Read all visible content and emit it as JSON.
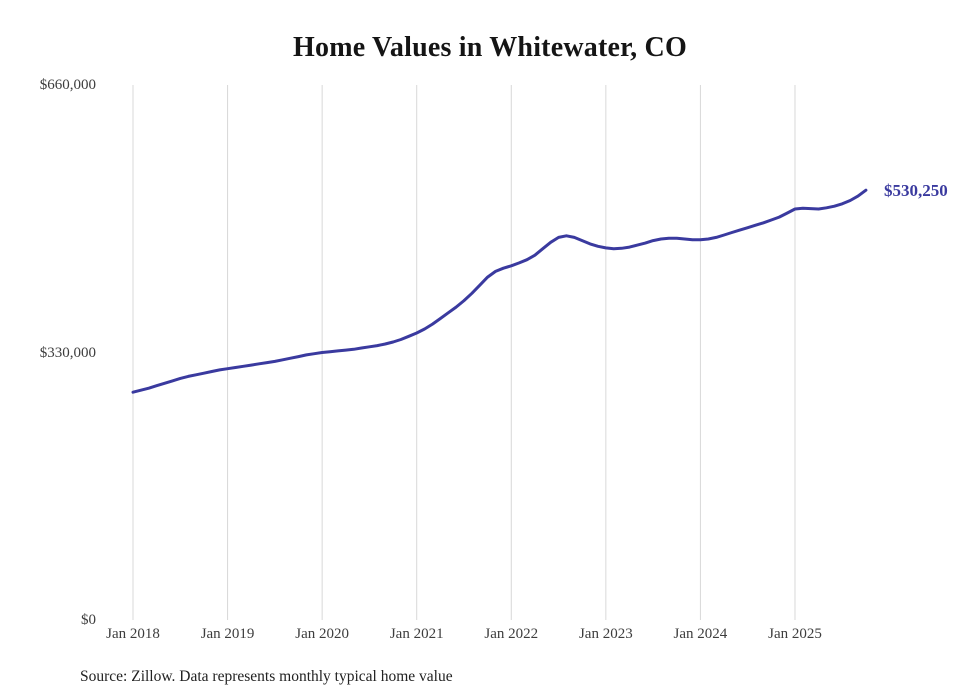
{
  "page": {
    "end_label": "$530,250",
    "source_note": "Source: Zillow. Data represents monthly typical home value",
    "line_color": "#3a3a9f",
    "end_label_color": "#3a3a9f",
    "gridline_color": "#d8d8d8"
  },
  "chart_data": {
    "type": "line",
    "title": "Home Values in Whitewater, CO",
    "xlabel": "",
    "ylabel": "",
    "ylim": [
      0,
      660000
    ],
    "grid": "vertical-only",
    "legend": "none",
    "annotation": "$530,250",
    "yticks": [
      {
        "value": 0,
        "label": "$0"
      },
      {
        "value": 330000,
        "label": "$330,000"
      },
      {
        "value": 660000,
        "label": "$660,000"
      }
    ],
    "xticks": [
      "Jan 2018",
      "Jan 2019",
      "Jan 2020",
      "Jan 2021",
      "Jan 2022",
      "Jan 2023",
      "Jan 2024",
      "Jan 2025"
    ],
    "x": [
      "Jan 2018",
      "Feb 2018",
      "Mar 2018",
      "Apr 2018",
      "May 2018",
      "Jun 2018",
      "Jul 2018",
      "Aug 2018",
      "Sep 2018",
      "Oct 2018",
      "Nov 2018",
      "Dec 2018",
      "Jan 2019",
      "Feb 2019",
      "Mar 2019",
      "Apr 2019",
      "May 2019",
      "Jun 2019",
      "Jul 2019",
      "Aug 2019",
      "Sep 2019",
      "Oct 2019",
      "Nov 2019",
      "Dec 2019",
      "Jan 2020",
      "Feb 2020",
      "Mar 2020",
      "Apr 2020",
      "May 2020",
      "Jun 2020",
      "Jul 2020",
      "Aug 2020",
      "Sep 2020",
      "Oct 2020",
      "Nov 2020",
      "Dec 2020",
      "Jan 2021",
      "Feb 2021",
      "Mar 2021",
      "Apr 2021",
      "May 2021",
      "Jun 2021",
      "Jul 2021",
      "Aug 2021",
      "Sep 2021",
      "Oct 2021",
      "Nov 2021",
      "Dec 2021",
      "Jan 2022",
      "Feb 2022",
      "Mar 2022",
      "Apr 2022",
      "May 2022",
      "Jun 2022",
      "Jul 2022",
      "Aug 2022",
      "Sep 2022",
      "Oct 2022",
      "Nov 2022",
      "Dec 2022",
      "Jan 2023",
      "Feb 2023",
      "Mar 2023",
      "Apr 2023",
      "May 2023",
      "Jun 2023",
      "Jul 2023",
      "Aug 2023",
      "Sep 2023",
      "Oct 2023",
      "Nov 2023",
      "Dec 2023",
      "Jan 2024",
      "Feb 2024",
      "Mar 2024",
      "Apr 2024",
      "May 2024",
      "Jun 2024",
      "Jul 2024",
      "Aug 2024",
      "Sep 2024",
      "Oct 2024",
      "Nov 2024",
      "Dec 2024",
      "Jan 2025",
      "Feb 2025",
      "Mar 2025",
      "Apr 2025",
      "May 2025",
      "Jun 2025",
      "Jul 2025",
      "Aug 2025",
      "Sep 2025",
      "Oct 2025"
    ],
    "values": [
      281000,
      283500,
      286000,
      289000,
      292000,
      295000,
      298000,
      300500,
      302500,
      304500,
      306500,
      308500,
      310000,
      311500,
      313000,
      314500,
      316000,
      317500,
      319000,
      321000,
      323000,
      325000,
      327000,
      328500,
      330000,
      331000,
      332000,
      333000,
      334000,
      335500,
      337000,
      338500,
      340500,
      343000,
      346000,
      350000,
      354000,
      359000,
      365000,
      372000,
      379000,
      386000,
      394000,
      403000,
      413000,
      423000,
      430000,
      434000,
      437000,
      440500,
      444500,
      450000,
      458000,
      466000,
      472000,
      474000,
      472000,
      468000,
      464000,
      461000,
      459000,
      458000,
      458500,
      460000,
      462500,
      465000,
      468000,
      470000,
      471000,
      471000,
      470000,
      469000,
      469000,
      470000,
      472000,
      475000,
      478000,
      481000,
      484000,
      487000,
      490000,
      493500,
      497000,
      502000,
      507000,
      508000,
      507500,
      507000,
      508500,
      510500,
      513500,
      517500,
      523000,
      530250
    ]
  }
}
